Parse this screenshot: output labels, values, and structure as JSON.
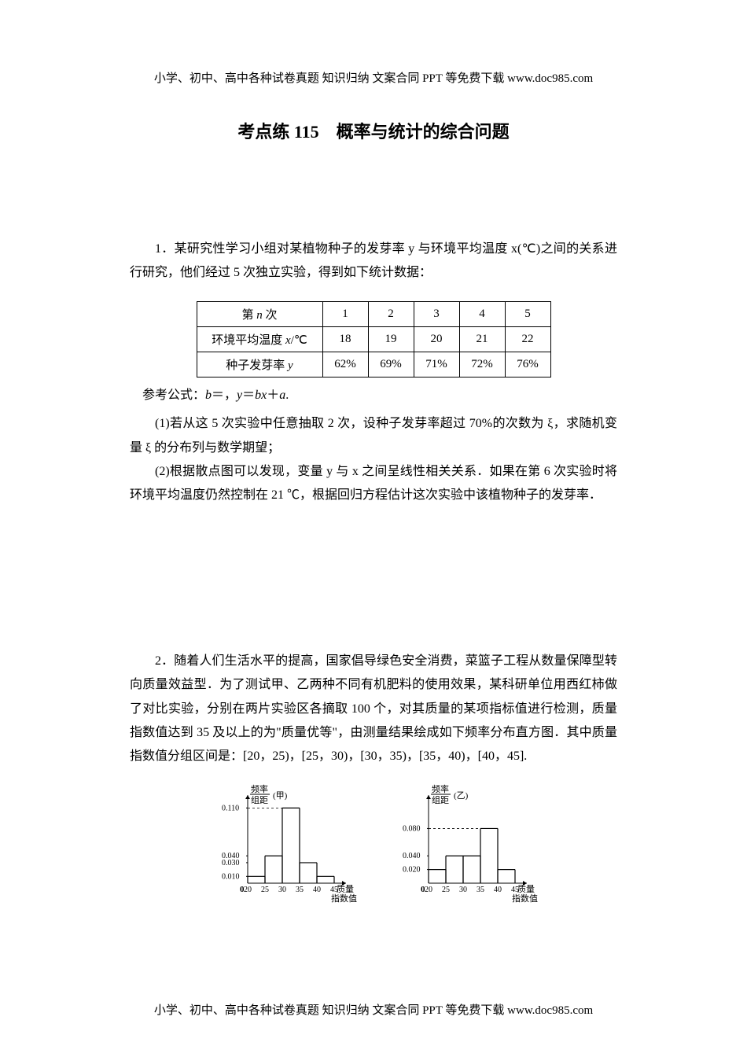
{
  "header_text": "小学、初中、高中各种试卷真题  知识归纳  文案合同  PPT 等免费下载     www.doc985.com",
  "footer_text": "小学、初中、高中各种试卷真题  知识归纳  文案合同  PPT 等免费下载     www.doc985.com",
  "title_prefix": "考点练 ",
  "title_num": "115",
  "title_suffix": "　概率与统计的综合问题",
  "q1": {
    "intro": "1．某研究性学习小组对某植物种子的发芽率 y 与环境平均温度 x(℃)之间的关系进行研究，他们经过 5 次独立实验，得到如下统计数据：",
    "table": {
      "rows": [
        [
          "第 n 次",
          "1",
          "2",
          "3",
          "4",
          "5"
        ],
        [
          "环境平均温度 x/℃",
          "18",
          "19",
          "20",
          "21",
          "22"
        ],
        [
          "种子发芽率 y",
          "62%",
          "69%",
          "71%",
          "72%",
          "76%"
        ]
      ]
    },
    "formula": "参考公式：b＝，y＝bx＋a.",
    "part1": "(1)若从这 5 次实验中任意抽取 2 次，设种子发芽率超过 70%的次数为 ξ，求随机变量 ξ 的分布列与数学期望；",
    "part2": "(2)根据散点图可以发现，变量 y 与 x 之间呈线性相关关系．如果在第 6 次实验时将环境平均温度仍然控制在 21 ℃，根据回归方程估计这次实验中该植物种子的发芽率．"
  },
  "q2": {
    "intro": "2．随着人们生活水平的提高，国家倡导绿色安全消费，菜篮子工程从数量保障型转向质量效益型．为了测试甲、乙两种不同有机肥料的使用效果，某科研单位用西红柿做了对比实验，分别在两片实验区各摘取 100 个，对其质量的某项指标值进行检测，质量指数值达到 35 及以上的为\"质量优等\"，由测量结果绘成如下频率分布直方图．其中质量指数值分组区间是：[20，25)，[25，30)，[30，35)，[35，40)，[40，45]."
  },
  "chart_jia": {
    "title": "(甲)",
    "y_label_top": "频率",
    "y_label_bot": "组距",
    "x_label_top": "质量",
    "x_label_bot": "指数值",
    "x_ticks": [
      "20",
      "25",
      "30",
      "35",
      "40",
      "45"
    ],
    "y_ticks": [
      "0.010",
      "0.030",
      "0.040",
      "0.110"
    ],
    "bars": [
      0.01,
      0.04,
      0.11,
      0.03,
      0.01
    ],
    "y_tick_vals": [
      0.01,
      0.03,
      0.04,
      0.11
    ],
    "y_max": 0.115
  },
  "chart_yi": {
    "title": "(乙)",
    "y_label_top": "频率",
    "y_label_bot": "组距",
    "x_label_top": "质量",
    "x_label_bot": "指数值",
    "x_ticks": [
      "20",
      "25",
      "30",
      "35",
      "40",
      "45"
    ],
    "y_ticks": [
      "0.020",
      "0.040",
      "0.080"
    ],
    "bars": [
      0.02,
      0.04,
      0.04,
      0.08,
      0.02
    ],
    "y_tick_vals": [
      0.02,
      0.04,
      0.08
    ],
    "y_max": 0.115
  }
}
